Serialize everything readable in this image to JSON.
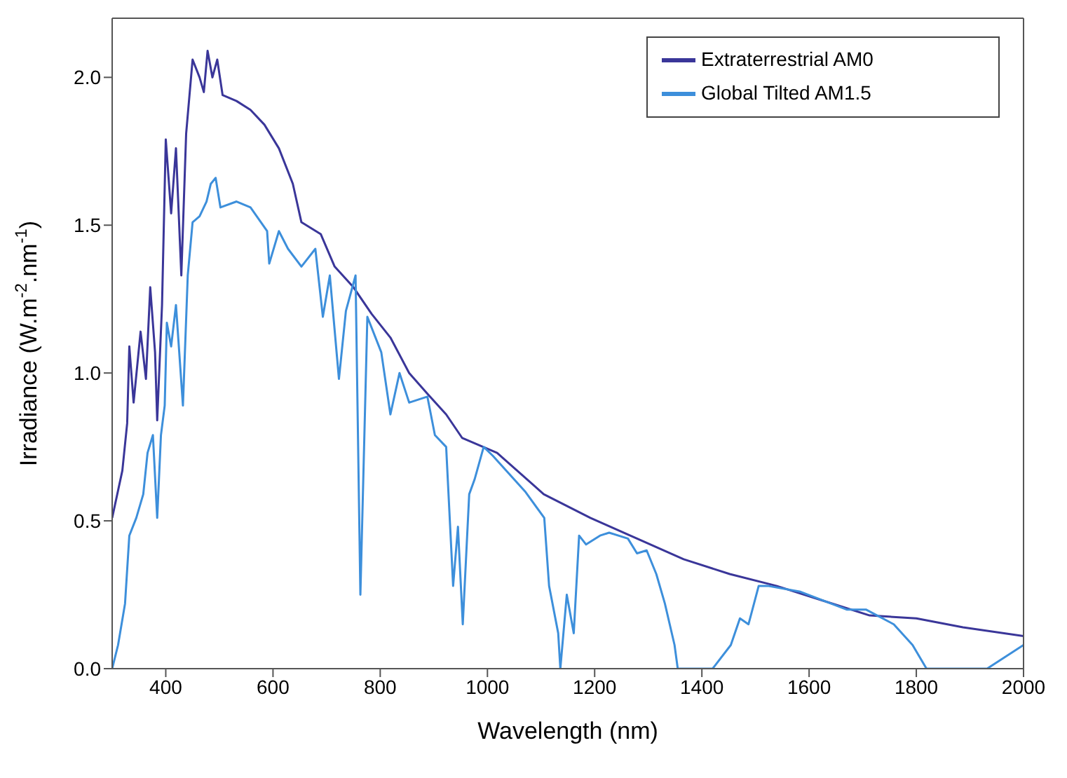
{
  "chart_data": {
    "type": "line",
    "xlabel": "Wavelength (nm)",
    "ylabel": "Irradiance (W.m$^{-2}$.nm$^{-1}$)",
    "xlim": [
      300,
      2000
    ],
    "xticks": [
      400,
      600,
      800,
      1000,
      1200,
      1400,
      1600,
      1800,
      2000
    ],
    "ylim": [
      0,
      2.2
    ],
    "yticks": [
      {
        "value": 0,
        "label": "0.0"
      },
      {
        "value": 0.5,
        "label": "0.5"
      },
      {
        "value": 1,
        "label": "1.0"
      },
      {
        "value": 1.5,
        "label": "1.5"
      },
      {
        "value": 2,
        "label": "2.0"
      }
    ],
    "legend": "top right",
    "marker": "none",
    "line_style": "solid",
    "series": [
      {
        "name": "Extraterrestrial AM0",
        "color": "#3a3699",
        "x": [
          300,
          319,
          328,
          332,
          340,
          353,
          363,
          371,
          380,
          384,
          393,
          400,
          410,
          419,
          429,
          438,
          450,
          463,
          471,
          478,
          487,
          496,
          506,
          532,
          558,
          584,
          611,
          637,
          653,
          689,
          715,
          750,
          784,
          819,
          854,
          888,
          923,
          953,
          1018,
          1105,
          1192,
          1279,
          1366,
          1452,
          1539,
          1626,
          1713,
          1800,
          1887,
          2000
        ],
        "values": [
          0.51,
          0.67,
          0.83,
          1.09,
          0.9,
          1.14,
          0.98,
          1.29,
          1.07,
          0.84,
          1.23,
          1.79,
          1.54,
          1.76,
          1.33,
          1.81,
          2.06,
          2.0,
          1.95,
          2.09,
          2.0,
          2.06,
          1.94,
          1.92,
          1.89,
          1.84,
          1.76,
          1.64,
          1.51,
          1.47,
          1.36,
          1.29,
          1.2,
          1.12,
          1.0,
          0.93,
          0.86,
          0.78,
          0.73,
          0.59,
          0.51,
          0.44,
          0.37,
          0.32,
          0.28,
          0.23,
          0.18,
          0.17,
          0.14,
          0.11
        ]
      },
      {
        "name": "Global Tilted AM1.5",
        "color": "#3d8fdb",
        "x": [
          300,
          311,
          324,
          332,
          345,
          358,
          366,
          376,
          384,
          391,
          398,
          402,
          410,
          419,
          432,
          441,
          450,
          463,
          476,
          484,
          493,
          502,
          532,
          558,
          589,
          593,
          611,
          628,
          653,
          679,
          693,
          706,
          723,
          736,
          754,
          763,
          776,
          802,
          819,
          836,
          854,
          888,
          902,
          923,
          936,
          945,
          954,
          966,
          976,
          993,
          1010,
          1070,
          1106,
          1115,
          1132,
          1136,
          1148,
          1161,
          1171,
          1184,
          1210,
          1227,
          1262,
          1279,
          1297,
          1315,
          1331,
          1349,
          1355,
          1420,
          1454,
          1471,
          1487,
          1506,
          1523,
          1584,
          1670,
          1706,
          1758,
          1793,
          1819,
          1932,
          2000
        ],
        "values": [
          0,
          0.08,
          0.22,
          0.45,
          0.51,
          0.59,
          0.73,
          0.79,
          0.51,
          0.79,
          0.89,
          1.17,
          1.09,
          1.23,
          0.89,
          1.33,
          1.51,
          1.53,
          1.58,
          1.64,
          1.66,
          1.56,
          1.58,
          1.56,
          1.48,
          1.37,
          1.48,
          1.42,
          1.36,
          1.42,
          1.19,
          1.33,
          0.98,
          1.21,
          1.33,
          0.25,
          1.19,
          1.07,
          0.86,
          1.0,
          0.9,
          0.92,
          0.79,
          0.75,
          0.28,
          0.48,
          0.15,
          0.59,
          0.64,
          0.75,
          0.72,
          0.6,
          0.51,
          0.28,
          0.12,
          0,
          0.25,
          0.12,
          0.45,
          0.42,
          0.45,
          0.46,
          0.44,
          0.39,
          0.4,
          0.32,
          0.22,
          0.08,
          0,
          0,
          0.08,
          0.17,
          0.15,
          0.28,
          0.28,
          0.26,
          0.2,
          0.2,
          0.15,
          0.08,
          0,
          0,
          0.08
        ]
      }
    ]
  }
}
